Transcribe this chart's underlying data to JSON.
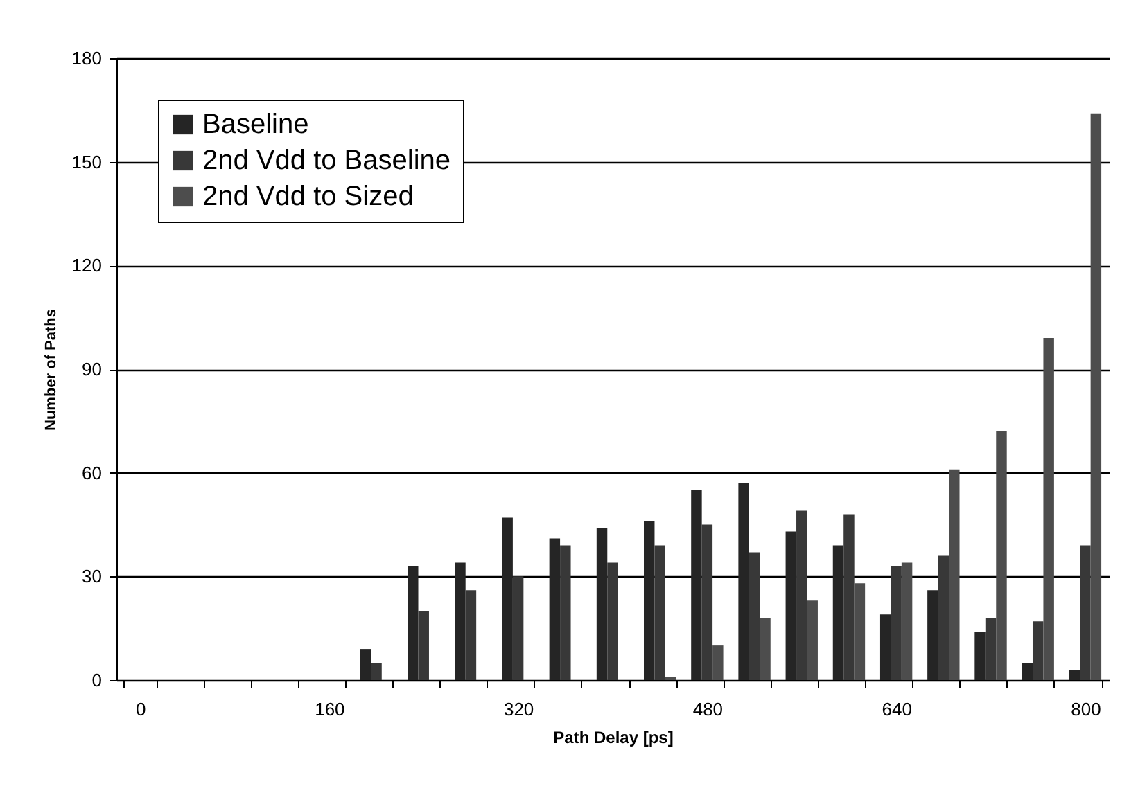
{
  "chart_data": {
    "type": "bar",
    "xlabel": "Path Delay [ps]",
    "ylabel": "Number of Paths",
    "categories": [
      "0",
      null,
      null,
      null,
      "160",
      null,
      null,
      null,
      "320",
      null,
      null,
      null,
      "480",
      null,
      null,
      null,
      "640",
      null,
      null,
      null,
      "800"
    ],
    "series": [
      {
        "name": "Baseline",
        "color": "#252525",
        "values": [
          0,
          0,
          0,
          0,
          0,
          9,
          33,
          34,
          47,
          41,
          44,
          46,
          55,
          57,
          43,
          39,
          19,
          26,
          14,
          5,
          3
        ]
      },
      {
        "name": "2nd Vdd to Baseline",
        "color": "#383838",
        "values": [
          0,
          0,
          0,
          0,
          0,
          5,
          20,
          26,
          30,
          39,
          34,
          39,
          45,
          37,
          49,
          48,
          33,
          36,
          18,
          17,
          39
        ]
      },
      {
        "name": "2nd Vdd to Sized",
        "color": "#4d4d4d",
        "values": [
          0,
          0,
          0,
          0,
          0,
          0,
          0,
          0,
          0,
          0,
          0,
          1,
          10,
          18,
          23,
          28,
          34,
          61,
          72,
          99,
          164
        ]
      }
    ],
    "ylim": [
      0,
      180
    ],
    "yticks": [
      0,
      30,
      60,
      90,
      120,
      150,
      180
    ],
    "grid": "y",
    "legend": "top left"
  }
}
